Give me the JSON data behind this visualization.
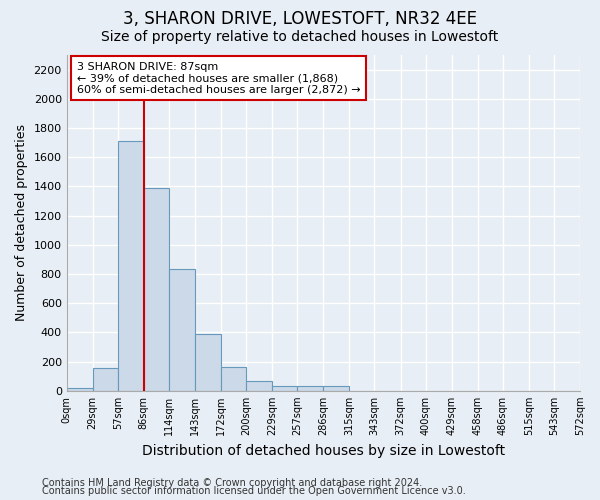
{
  "title": "3, SHARON DRIVE, LOWESTOFT, NR32 4EE",
  "subtitle": "Size of property relative to detached houses in Lowestoft",
  "xlabel": "Distribution of detached houses by size in Lowestoft",
  "ylabel": "Number of detached properties",
  "footnote1": "Contains HM Land Registry data © Crown copyright and database right 2024.",
  "footnote2": "Contains public sector information licensed under the Open Government Licence v3.0.",
  "bar_color": "#ccd9e8",
  "bar_edge_color": "#6699bb",
  "background_color": "#e8eef5",
  "grid_color": "#ffffff",
  "bin_edges": [
    0,
    29,
    57,
    86,
    114,
    143,
    172,
    200,
    229,
    257,
    286,
    315,
    343,
    372,
    400,
    429,
    458,
    486,
    515,
    543,
    572
  ],
  "bin_labels": [
    "0sqm",
    "29sqm",
    "57sqm",
    "86sqm",
    "114sqm",
    "143sqm",
    "172sqm",
    "200sqm",
    "229sqm",
    "257sqm",
    "286sqm",
    "315sqm",
    "343sqm",
    "372sqm",
    "400sqm",
    "429sqm",
    "458sqm",
    "486sqm",
    "515sqm",
    "543sqm",
    "572sqm"
  ],
  "bar_heights": [
    20,
    155,
    1710,
    1390,
    835,
    390,
    165,
    65,
    35,
    30,
    30,
    0,
    0,
    0,
    0,
    0,
    0,
    0,
    0,
    0
  ],
  "ylim": [
    0,
    2300
  ],
  "yticks": [
    0,
    200,
    400,
    600,
    800,
    1000,
    1200,
    1400,
    1600,
    1800,
    2000,
    2200
  ],
  "red_line_x": 86,
  "annotation_line1": "3 SHARON DRIVE: 87sqm",
  "annotation_line2": "← 39% of detached houses are smaller (1,868)",
  "annotation_line3": "60% of semi-detached houses are larger (2,872) →",
  "annotation_box_color": "#ffffff",
  "annotation_border_color": "#cc0000",
  "red_line_color": "#cc0000",
  "title_fontsize": 12,
  "subtitle_fontsize": 10,
  "ylabel_fontsize": 9,
  "xlabel_fontsize": 10,
  "footnote_fontsize": 7
}
